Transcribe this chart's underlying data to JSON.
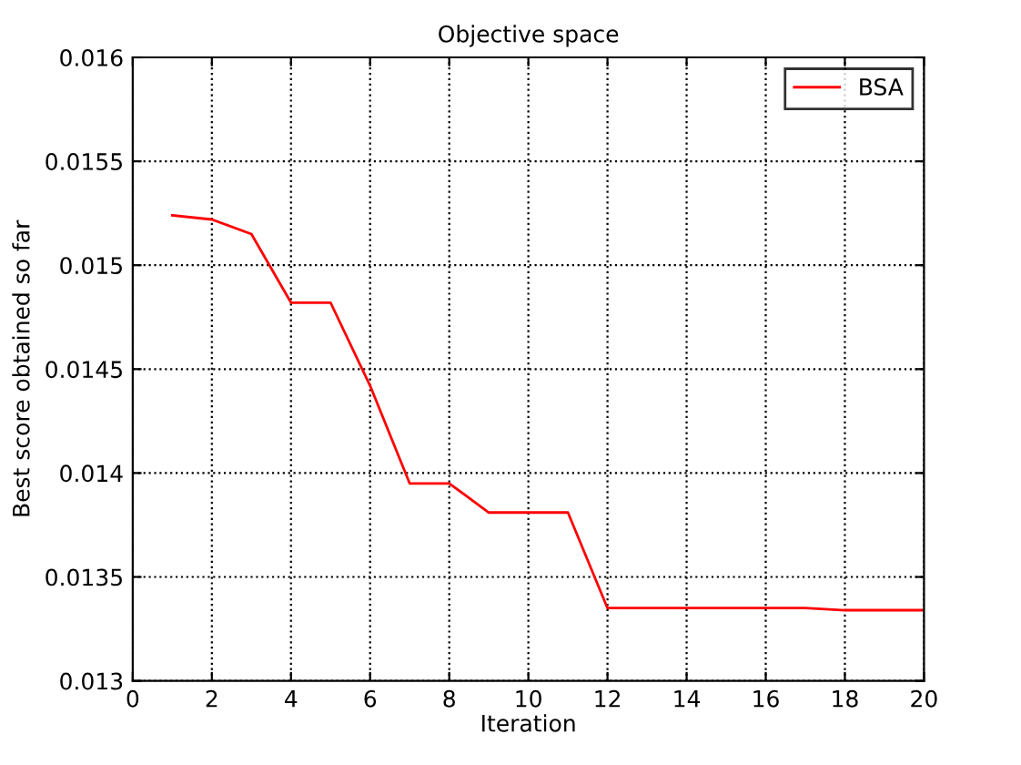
{
  "chart_data": {
    "type": "line",
    "title": "Objective space",
    "xlabel": "Iteration",
    "ylabel": "Best score obtained so far",
    "x": [
      1,
      2,
      3,
      4,
      5,
      6,
      7,
      8,
      9,
      10,
      11,
      12,
      13,
      14,
      15,
      16,
      17,
      18,
      19,
      20
    ],
    "series": [
      {
        "name": "BSA",
        "color": "#ff0000",
        "values": [
          0.01524,
          0.01522,
          0.01515,
          0.01482,
          0.01482,
          0.01442,
          0.01395,
          0.01395,
          0.01381,
          0.01381,
          0.01381,
          0.01335,
          0.01335,
          0.01335,
          0.01335,
          0.01335,
          0.01335,
          0.01334,
          0.01334,
          0.01334
        ]
      }
    ],
    "xlim": [
      0,
      20
    ],
    "xticks": [
      0,
      2,
      4,
      6,
      8,
      10,
      12,
      14,
      16,
      18,
      20
    ],
    "ylim": [
      0.013,
      0.016
    ],
    "yticks": [
      0.013,
      0.0135,
      0.014,
      0.0145,
      0.015,
      0.0155,
      0.016
    ],
    "grid": true,
    "legend": "top right",
    "line_style": "solid",
    "marker": "none"
  }
}
